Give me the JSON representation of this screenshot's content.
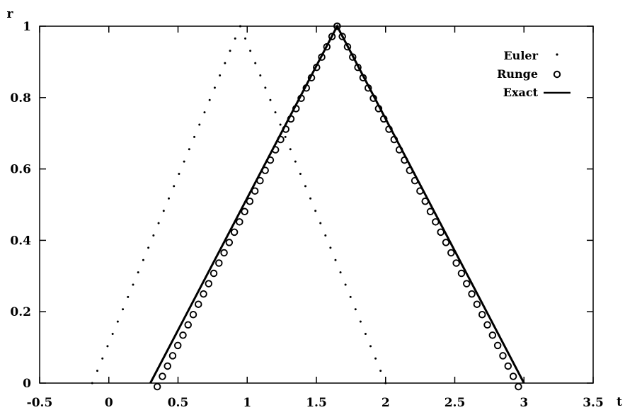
{
  "chart_data": {
    "type": "line",
    "title": "",
    "xlabel": "t",
    "ylabel": "r",
    "xlim": [
      -0.5,
      3.5
    ],
    "ylim": [
      0,
      1
    ],
    "grid": false,
    "legend_position": "top-right",
    "x_ticks": [
      "-0.5",
      "0",
      "0.5",
      "1",
      "1.5",
      "2",
      "2.5",
      "3",
      "3.5"
    ],
    "y_ticks": [
      "0",
      "0.2",
      "0.4",
      "0.6",
      "0.8",
      "1"
    ],
    "series": [
      {
        "name": "Euler",
        "style": "points",
        "segments": [
          {
            "x0": -0.12,
            "y0": 0.0,
            "x1": 0.95,
            "y1": 1.0,
            "n": 30
          },
          {
            "x0": 0.95,
            "y0": 1.0,
            "x1": 2.0,
            "y1": 0.0,
            "n": 30
          }
        ]
      },
      {
        "name": "Runge",
        "style": "circles",
        "segments": [
          {
            "x0": 0.35,
            "y0": -0.01,
            "x1": 1.65,
            "y1": 1.0,
            "n": 36
          },
          {
            "x0": 1.65,
            "y0": 1.0,
            "x1": 2.96,
            "y1": -0.01,
            "n": 36
          }
        ]
      },
      {
        "name": "Exact",
        "style": "line",
        "points": [
          [
            0.3,
            0.0
          ],
          [
            1.65,
            1.0
          ],
          [
            3.0,
            0.0
          ]
        ]
      }
    ]
  }
}
